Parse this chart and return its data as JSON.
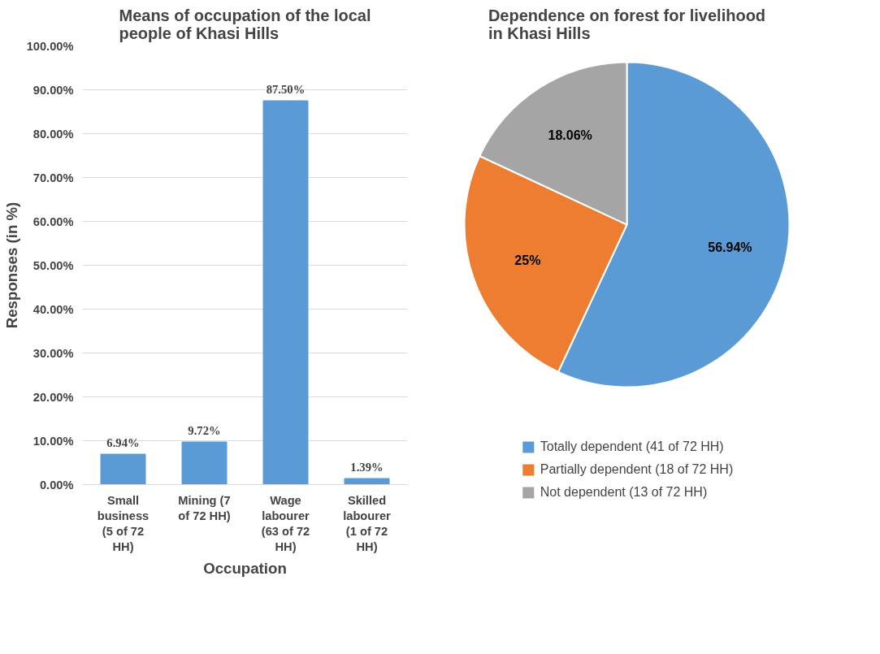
{
  "chart_data": [
    {
      "type": "bar",
      "title": "Means of occupation of the local people of Khasi Hills",
      "xlabel": "Occupation",
      "ylabel": "Responses (in %)",
      "categories": [
        "Small business (5 of 72 HH)",
        "Mining (7 of 72 HH)",
        "Wage labourer (63 of 72 HH)",
        "Skilled labourer (1 of 72 HH)"
      ],
      "values": [
        6.94,
        9.72,
        87.5,
        1.39
      ],
      "color": "#5b9bd5",
      "value_labels": [
        "6.94%",
        "9.72%",
        "87.50%",
        "1.39%"
      ],
      "ylim": [
        0,
        100
      ],
      "yticks": [
        {
          "value": 0,
          "label": "0.00%"
        },
        {
          "value": 10,
          "label": "10.00%"
        },
        {
          "value": 20,
          "label": "20.00%"
        },
        {
          "value": 30,
          "label": "30.00%"
        },
        {
          "value": 40,
          "label": "40.00%"
        },
        {
          "value": 50,
          "label": "50.00%"
        },
        {
          "value": 60,
          "label": "60.00%"
        },
        {
          "value": 70,
          "label": "70.00%"
        },
        {
          "value": 80,
          "label": "80.00%"
        },
        {
          "value": 90,
          "label": "90.00%"
        },
        {
          "value": 100,
          "label": "100.00%"
        }
      ],
      "grid": "y"
    },
    {
      "type": "pie",
      "title": "Dependence on forest for livelihood in Khasi Hills",
      "categories": [
        "Totally dependent (41 of 72 HH)",
        "Partially dependent (18 of 72 HH)",
        "Not dependent (13 of 72 HH)"
      ],
      "values": [
        56.94,
        25,
        18.06
      ],
      "colors": [
        "#5b9bd5",
        "#ed7d31",
        "#a5a5a5"
      ],
      "value_labels": [
        "56.94%",
        "25%",
        "18.06%"
      ],
      "legend": "bottom"
    }
  ]
}
